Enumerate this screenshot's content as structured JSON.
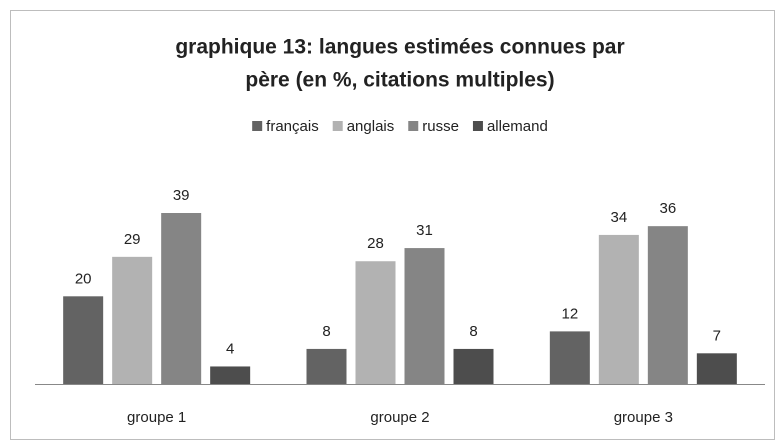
{
  "chart_data": {
    "type": "bar",
    "title": [
      "graphique 13: langues estimées connues par",
      "père (en %, citations multiples)"
    ],
    "categories": [
      "groupe 1",
      "groupe 2",
      "groupe 3"
    ],
    "series": [
      {
        "name": "français",
        "color": "#636363",
        "values": [
          20,
          8,
          12
        ]
      },
      {
        "name": "anglais",
        "color": "#b2b2b2",
        "values": [
          29,
          28,
          34
        ]
      },
      {
        "name": "russe",
        "color": "#858585",
        "values": [
          39,
          31,
          36
        ]
      },
      {
        "name": "allemand",
        "color": "#4d4d4d",
        "values": [
          4,
          8,
          7
        ]
      }
    ],
    "legend": "top"
  }
}
